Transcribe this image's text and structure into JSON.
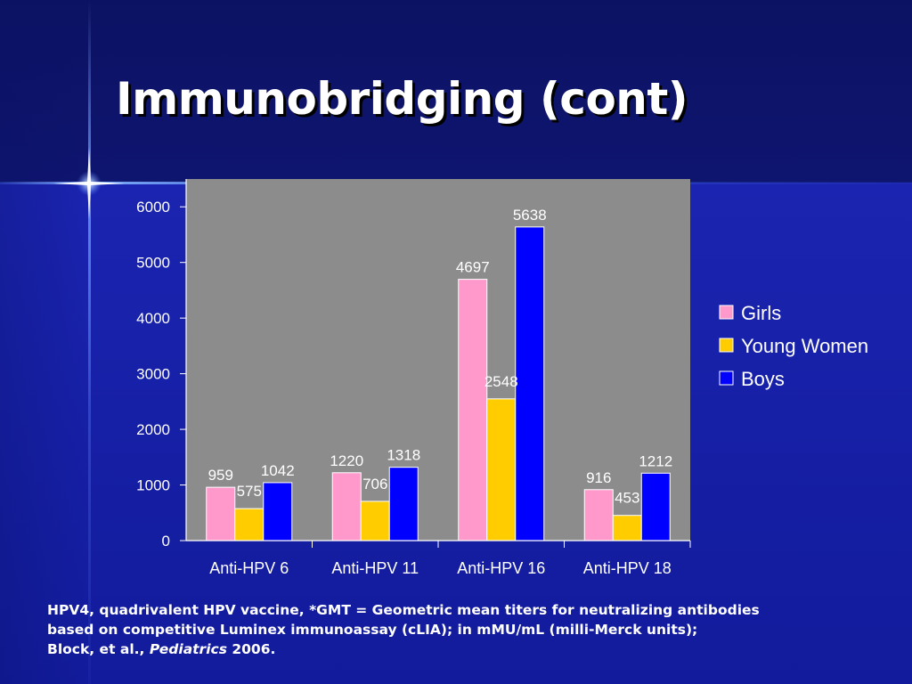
{
  "slide": {
    "title": "Immunobridging (cont)",
    "footnote": {
      "line1": "HPV4, quadrivalent HPV vaccine, *GMT = Geometric mean titers for neutralizing antibodies",
      "line2": "based on competitive Luminex immunoassay (cLIA); in mMU/mL (milli-Merck units);",
      "line3_prefix": "Block, et al., ",
      "line3_journal": "Pediatrics",
      "line3_suffix": " 2006."
    }
  },
  "colors": {
    "plot_background": "#8c8c8c",
    "girls": "#ff99cc",
    "young_women": "#ffcc00",
    "boys": "#0000ff"
  },
  "chart_data": {
    "type": "bar",
    "categories": [
      "Anti-HPV 6",
      "Anti-HPV 11",
      "Anti-HPV 16",
      "Anti-HPV 18"
    ],
    "series": [
      {
        "name": "Girls",
        "values": [
          959,
          1220,
          4697,
          916
        ]
      },
      {
        "name": "Young Women",
        "values": [
          575,
          706,
          2548,
          453
        ]
      },
      {
        "name": "Boys",
        "values": [
          1042,
          1318,
          5638,
          1212
        ]
      }
    ],
    "y_ticks": [
      0,
      1000,
      2000,
      3000,
      4000,
      5000,
      6000
    ],
    "ylim": [
      0,
      6500
    ],
    "data_labels": true,
    "legend_position": "right",
    "grid": false
  }
}
